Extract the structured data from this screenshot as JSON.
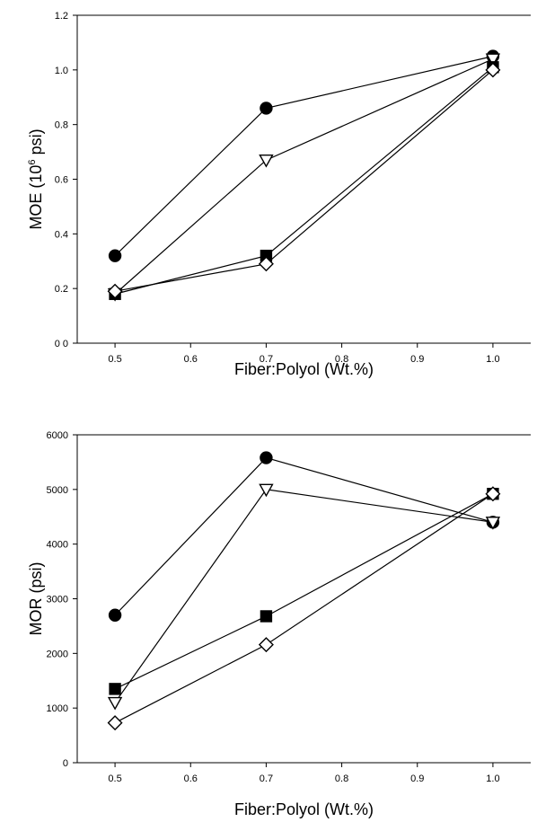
{
  "chart_data": [
    {
      "type": "line",
      "title": "",
      "xlabel": "Fiber:Polyol (Wt.%)",
      "ylabel": {
        "before": "MOE (10",
        "sup": "6",
        "after": " psi)"
      },
      "xlim": [
        0.45,
        1.05
      ],
      "ylim": [
        0,
        1.2
      ],
      "x_ticks": [
        0.5,
        0.6,
        0.7,
        0.8,
        0.9,
        1.0
      ],
      "x_tick_labels": [
        "0.5",
        "0.6",
        "0.7",
        "0.8",
        "0.9",
        "1.0"
      ],
      "y_ticks": [
        0,
        0.2,
        0.4,
        0.6,
        0.8,
        1.0,
        1.2
      ],
      "y_tick_labels": [
        "0 0",
        "0.2",
        "0.4",
        "0.6",
        "0.8",
        "1.0",
        "1.2"
      ],
      "x": [
        0.5,
        0.7,
        1.0
      ],
      "series": [
        {
          "marker": "filled-circle",
          "values": [
            0.32,
            0.86,
            1.05
          ]
        },
        {
          "marker": "open-triangle-down",
          "values": [
            0.18,
            0.67,
            1.04
          ]
        },
        {
          "marker": "filled-square",
          "values": [
            0.18,
            0.32,
            1.01
          ]
        },
        {
          "marker": "open-diamond",
          "values": [
            0.19,
            0.29,
            1.0
          ]
        }
      ]
    },
    {
      "type": "line",
      "title": "",
      "xlabel": "Fiber:Polyol (Wt.%)",
      "ylabel": {
        "before": "MOR (psi)",
        "sup": "",
        "after": ""
      },
      "xlim": [
        0.45,
        1.05
      ],
      "ylim": [
        0,
        6000
      ],
      "x_ticks": [
        0.5,
        0.6,
        0.7,
        0.8,
        0.9,
        1.0
      ],
      "x_tick_labels": [
        "0.5",
        "0.6",
        "0.7",
        "0.8",
        "0.9",
        "1.0"
      ],
      "y_ticks": [
        0,
        1000,
        2000,
        3000,
        4000,
        5000,
        6000
      ],
      "y_tick_labels": [
        "0",
        "1000",
        "2000",
        "3000",
        "4000",
        "5000",
        "6000"
      ],
      "x": [
        0.5,
        0.7,
        1.0
      ],
      "series": [
        {
          "marker": "filled-circle",
          "values": [
            2700,
            5580,
            4400
          ]
        },
        {
          "marker": "open-triangle-down",
          "values": [
            1100,
            5000,
            4400
          ]
        },
        {
          "marker": "filled-square",
          "values": [
            1350,
            2680,
            4920
          ]
        },
        {
          "marker": "open-diamond",
          "values": [
            730,
            2160,
            4920
          ]
        }
      ]
    }
  ]
}
